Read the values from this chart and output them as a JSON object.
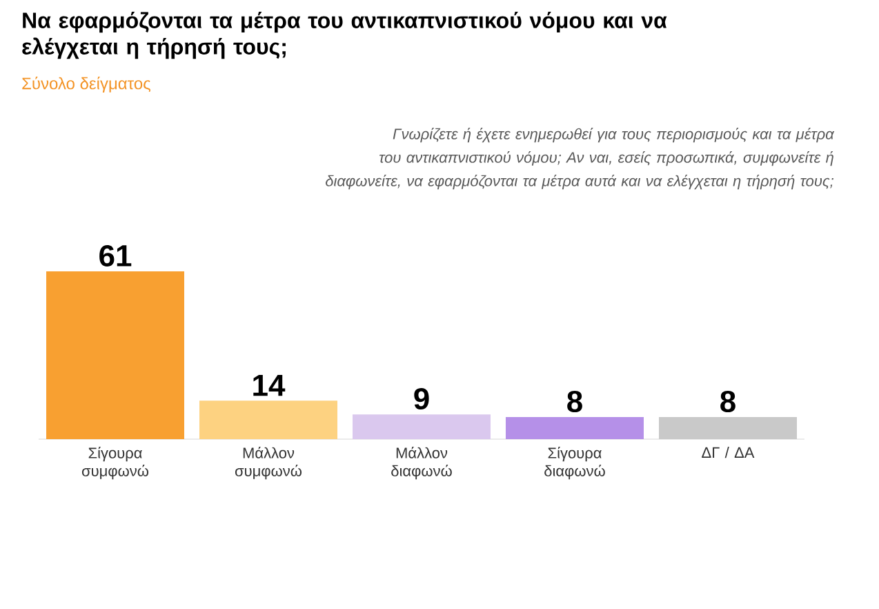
{
  "chart_data": {
    "type": "bar",
    "title": "Να εφαρμόζονται τα μέτρα του αντικαπνιστικού νόμου και να ελέγχεται η τήρησή τους;",
    "subtitle": "Σύνολο δείγματος",
    "annotations": [
      "Γνωρίζετε ή έχετε ενημερωθεί για τους περιορισμούς και τα μέτρα του αντικαπνιστικού νόμου; Αν ναι, εσείς προσωπικά, συμφωνείτε ή διαφωνείτε, να εφαρμόζονται τα μέτρα αυτά και να ελέγχεται η τήρησή τους;"
    ],
    "categories": [
      "Σίγουρα συμφωνώ",
      "Μάλλον συμφωνώ",
      "Μάλλον διαφωνώ",
      "Σίγουρα διαφωνώ",
      "ΔΓ / ΔΑ"
    ],
    "values": [
      61,
      14,
      9,
      8,
      8
    ],
    "colors": [
      "#f8a031",
      "#fdd281",
      "#dac8ee",
      "#b590e8",
      "#c9c9c9"
    ],
    "data_labels": true
  }
}
